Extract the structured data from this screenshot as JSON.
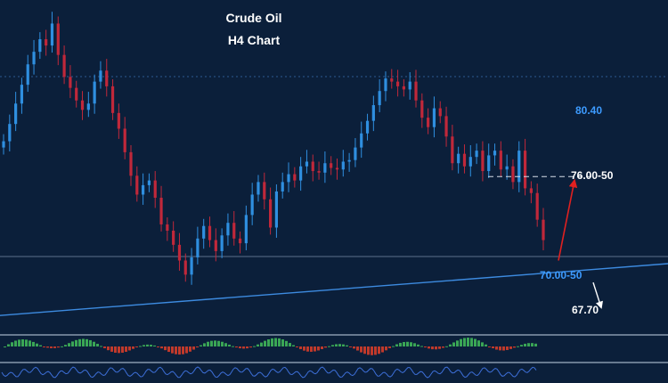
{
  "chart_data": {
    "type": "line",
    "title": "Crude Oil",
    "subtitle": "H4 Chart",
    "price_range": [
      66.5,
      87.5
    ],
    "levels": [
      {
        "label": "80.40",
        "value": 80.4,
        "color": "#3d9bff"
      },
      {
        "label": "76.00-50",
        "value": 76.25,
        "color": "#ffffff"
      },
      {
        "label": "70.00-50",
        "value": 70.25,
        "color": "#3d9bff"
      },
      {
        "label": "67.70",
        "value": 67.7,
        "color": "#ffffff"
      }
    ],
    "close_series": [
      78.5,
      79.6,
      80.9,
      82.1,
      83.4,
      84.2,
      85.0,
      84.6,
      86.0,
      84.0,
      82.6,
      81.9,
      81.1,
      80.5,
      80.9,
      82.3,
      83.0,
      82.0,
      80.3,
      79.3,
      77.8,
      76.3,
      75.1,
      75.7,
      76.0,
      74.9,
      73.2,
      72.8,
      71.9,
      70.9,
      70.0,
      71.1,
      72.3,
      73.1,
      72.2,
      71.5,
      72.5,
      73.3,
      72.3,
      72.0,
      73.8,
      75.1,
      75.9,
      74.8,
      73.0,
      75.3,
      75.9,
      76.4,
      76.0,
      76.9,
      77.2,
      76.6,
      76.5,
      77.1,
      76.8,
      76.7,
      77.2,
      77.3,
      78.1,
      79.0,
      79.8,
      80.8,
      81.7,
      82.5,
      82.3,
      82.0,
      81.8,
      82.3,
      81.1,
      80.0,
      79.4,
      80.6,
      80.1,
      78.8,
      77.1,
      77.7,
      76.9,
      77.5,
      77.9,
      76.6,
      77.6,
      77.9,
      76.7,
      76.9,
      75.9,
      77.9,
      75.5,
      75.2,
      73.5,
      72.2
    ],
    "trendline": {
      "start": 67.4,
      "end": 70.7
    },
    "forecast_arrows": [
      {
        "direction": "up",
        "color": "#e02020"
      },
      {
        "direction": "down",
        "color": "#ffffff"
      }
    ],
    "indicator_colors": {
      "positive": "#3aa655",
      "negative": "#c0392b",
      "rsi": "#3d6fd8"
    }
  }
}
